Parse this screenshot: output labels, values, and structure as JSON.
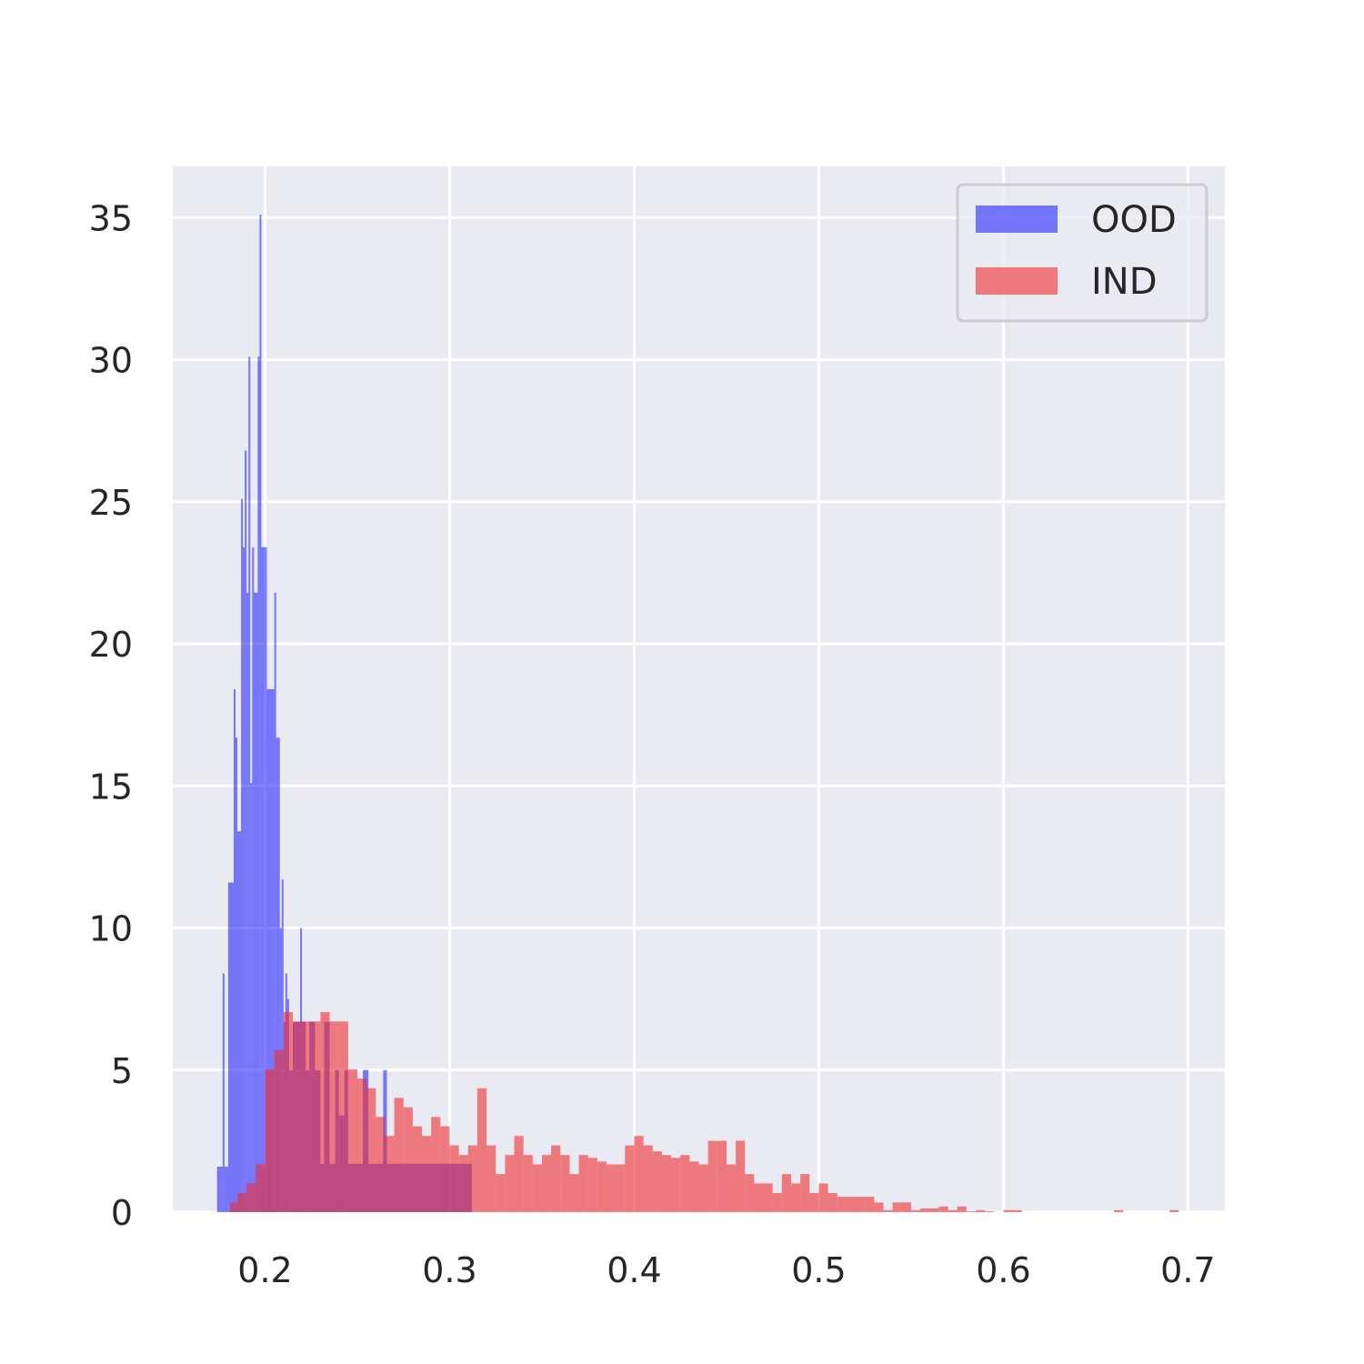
{
  "chart_data": {
    "type": "histogram",
    "title": "",
    "xlabel": "",
    "ylabel": "",
    "xlim": [
      0.15,
      0.72
    ],
    "ylim": [
      0,
      36.8
    ],
    "x_ticks": [
      0.2,
      0.3,
      0.4,
      0.5,
      0.6,
      0.7
    ],
    "x_tick_labels": [
      "0.2",
      "0.3",
      "0.4",
      "0.5",
      "0.6",
      "0.7"
    ],
    "y_ticks": [
      0,
      5,
      10,
      15,
      20,
      25,
      30,
      35
    ],
    "y_tick_labels": [
      "0",
      "5",
      "10",
      "15",
      "20",
      "25",
      "30",
      "35"
    ],
    "grid": true,
    "legend_position": "top-right",
    "series": [
      {
        "name": "OOD",
        "color": "#0000ff",
        "opacity": 0.5,
        "bins": [
          [
            0.174,
            0.177,
            1.6
          ],
          [
            0.177,
            0.178,
            8.4
          ],
          [
            0.178,
            0.18,
            1.6
          ],
          [
            0.18,
            0.183,
            11.6
          ],
          [
            0.183,
            0.184,
            18.4
          ],
          [
            0.184,
            0.185,
            16.7
          ],
          [
            0.185,
            0.187,
            13.4
          ],
          [
            0.187,
            0.188,
            25.1
          ],
          [
            0.188,
            0.189,
            23.4
          ],
          [
            0.189,
            0.19,
            26.8
          ],
          [
            0.19,
            0.191,
            21.8
          ],
          [
            0.191,
            0.192,
            30.1
          ],
          [
            0.192,
            0.193,
            15.1
          ],
          [
            0.193,
            0.194,
            23.4
          ],
          [
            0.194,
            0.196,
            21.8
          ],
          [
            0.196,
            0.197,
            30.1
          ],
          [
            0.197,
            0.198,
            35.1
          ],
          [
            0.198,
            0.2,
            23.4
          ],
          [
            0.2,
            0.201,
            23.4
          ],
          [
            0.201,
            0.205,
            18.4
          ],
          [
            0.205,
            0.206,
            21.8
          ],
          [
            0.206,
            0.208,
            16.7
          ],
          [
            0.208,
            0.209,
            10.0
          ],
          [
            0.209,
            0.21,
            11.7
          ],
          [
            0.21,
            0.211,
            6.7
          ],
          [
            0.211,
            0.212,
            8.4
          ],
          [
            0.212,
            0.213,
            7.5
          ],
          [
            0.213,
            0.215,
            5.0
          ],
          [
            0.215,
            0.219,
            6.7
          ],
          [
            0.219,
            0.22,
            10.0
          ],
          [
            0.22,
            0.222,
            6.7
          ],
          [
            0.222,
            0.224,
            5.0
          ],
          [
            0.224,
            0.227,
            6.7
          ],
          [
            0.227,
            0.23,
            5.0
          ],
          [
            0.23,
            0.232,
            1.7
          ],
          [
            0.232,
            0.235,
            6.7
          ],
          [
            0.235,
            0.238,
            1.7
          ],
          [
            0.238,
            0.24,
            5.0
          ],
          [
            0.24,
            0.243,
            3.4
          ],
          [
            0.243,
            0.245,
            5.0
          ],
          [
            0.245,
            0.248,
            1.7
          ],
          [
            0.248,
            0.25,
            1.7
          ],
          [
            0.25,
            0.253,
            1.7
          ],
          [
            0.253,
            0.256,
            5.0
          ],
          [
            0.256,
            0.26,
            1.7
          ],
          [
            0.26,
            0.264,
            1.7
          ],
          [
            0.264,
            0.266,
            5.0
          ],
          [
            0.266,
            0.27,
            1.7
          ],
          [
            0.27,
            0.28,
            1.7
          ],
          [
            0.28,
            0.29,
            1.7
          ],
          [
            0.29,
            0.3,
            1.7
          ],
          [
            0.3,
            0.31,
            1.7
          ],
          [
            0.31,
            0.312,
            1.7
          ]
        ]
      },
      {
        "name": "IND",
        "color": "#ef2b30",
        "opacity": 0.6,
        "bins": [
          [
            0.181,
            0.185,
            0.34
          ],
          [
            0.185,
            0.19,
            0.67
          ],
          [
            0.19,
            0.195,
            1.01
          ],
          [
            0.195,
            0.2,
            1.68
          ],
          [
            0.2,
            0.205,
            5.03
          ],
          [
            0.205,
            0.21,
            5.7
          ],
          [
            0.21,
            0.215,
            7.04
          ],
          [
            0.215,
            0.22,
            6.71
          ],
          [
            0.22,
            0.225,
            6.71
          ],
          [
            0.225,
            0.23,
            6.71
          ],
          [
            0.23,
            0.235,
            7.04
          ],
          [
            0.235,
            0.24,
            6.71
          ],
          [
            0.24,
            0.245,
            6.71
          ],
          [
            0.245,
            0.25,
            5.03
          ],
          [
            0.25,
            0.255,
            4.7
          ],
          [
            0.255,
            0.26,
            4.36
          ],
          [
            0.26,
            0.265,
            3.35
          ],
          [
            0.265,
            0.27,
            2.68
          ],
          [
            0.27,
            0.275,
            4.02
          ],
          [
            0.275,
            0.28,
            3.69
          ],
          [
            0.28,
            0.285,
            3.02
          ],
          [
            0.285,
            0.29,
            2.68
          ],
          [
            0.29,
            0.295,
            3.35
          ],
          [
            0.295,
            0.3,
            3.02
          ],
          [
            0.3,
            0.305,
            2.35
          ],
          [
            0.305,
            0.31,
            2.01
          ],
          [
            0.31,
            0.315,
            2.35
          ],
          [
            0.315,
            0.32,
            4.36
          ],
          [
            0.32,
            0.325,
            2.35
          ],
          [
            0.325,
            0.33,
            1.34
          ],
          [
            0.33,
            0.335,
            2.01
          ],
          [
            0.335,
            0.34,
            2.68
          ],
          [
            0.34,
            0.345,
            2.01
          ],
          [
            0.345,
            0.35,
            1.68
          ],
          [
            0.35,
            0.355,
            2.01
          ],
          [
            0.355,
            0.36,
            2.35
          ],
          [
            0.36,
            0.365,
            2.01
          ],
          [
            0.365,
            0.37,
            1.34
          ],
          [
            0.37,
            0.375,
            2.01
          ],
          [
            0.375,
            0.38,
            1.91
          ],
          [
            0.38,
            0.385,
            1.78
          ],
          [
            0.385,
            0.39,
            1.68
          ],
          [
            0.39,
            0.395,
            1.68
          ],
          [
            0.395,
            0.4,
            2.35
          ],
          [
            0.4,
            0.405,
            2.68
          ],
          [
            0.405,
            0.41,
            2.35
          ],
          [
            0.41,
            0.415,
            2.14
          ],
          [
            0.415,
            0.42,
            2.01
          ],
          [
            0.42,
            0.425,
            1.91
          ],
          [
            0.425,
            0.43,
            2.01
          ],
          [
            0.43,
            0.435,
            1.78
          ],
          [
            0.435,
            0.44,
            1.68
          ],
          [
            0.44,
            0.445,
            2.51
          ],
          [
            0.445,
            0.45,
            2.51
          ],
          [
            0.45,
            0.455,
            1.68
          ],
          [
            0.455,
            0.46,
            2.51
          ],
          [
            0.46,
            0.465,
            1.34
          ],
          [
            0.465,
            0.47,
            1.01
          ],
          [
            0.47,
            0.475,
            1.01
          ],
          [
            0.475,
            0.48,
            0.67
          ],
          [
            0.48,
            0.485,
            1.34
          ],
          [
            0.485,
            0.49,
            1.01
          ],
          [
            0.49,
            0.495,
            1.34
          ],
          [
            0.495,
            0.5,
            0.67
          ],
          [
            0.5,
            0.505,
            1.01
          ],
          [
            0.505,
            0.51,
            0.67
          ],
          [
            0.51,
            0.515,
            0.54
          ],
          [
            0.515,
            0.52,
            0.54
          ],
          [
            0.52,
            0.525,
            0.54
          ],
          [
            0.525,
            0.53,
            0.54
          ],
          [
            0.53,
            0.535,
            0.34
          ],
          [
            0.535,
            0.54,
            0.07
          ],
          [
            0.54,
            0.545,
            0.34
          ],
          [
            0.545,
            0.55,
            0.34
          ],
          [
            0.55,
            0.555,
            0.07
          ],
          [
            0.555,
            0.56,
            0.13
          ],
          [
            0.56,
            0.565,
            0.13
          ],
          [
            0.565,
            0.57,
            0.2
          ],
          [
            0.57,
            0.575,
            0.07
          ],
          [
            0.575,
            0.58,
            0.2
          ],
          [
            0.58,
            0.585,
            0.03
          ],
          [
            0.585,
            0.59,
            0.07
          ],
          [
            0.59,
            0.595,
            0.03
          ],
          [
            0.6,
            0.605,
            0.07
          ],
          [
            0.605,
            0.61,
            0.07
          ],
          [
            0.66,
            0.665,
            0.07
          ],
          [
            0.69,
            0.695,
            0.07
          ]
        ]
      }
    ]
  }
}
